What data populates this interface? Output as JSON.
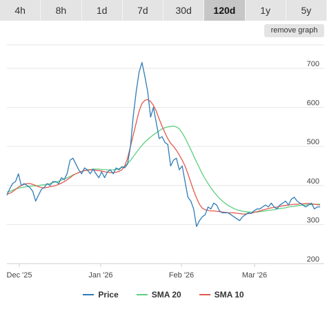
{
  "tabs": [
    {
      "label": "4h",
      "active": false
    },
    {
      "label": "8h",
      "active": false
    },
    {
      "label": "1d",
      "active": false
    },
    {
      "label": "7d",
      "active": false
    },
    {
      "label": "30d",
      "active": false
    },
    {
      "label": "120d",
      "active": true
    },
    {
      "label": "1y",
      "active": false
    },
    {
      "label": "5y",
      "active": false
    }
  ],
  "remove_graph_label": "remove graph",
  "colors": {
    "price": "#2e7bb5",
    "sma20": "#5ccf7f",
    "sma10": "#e2584c",
    "grid": "#e6e6e6",
    "axis_text": "#444444"
  },
  "chart_data": {
    "type": "line",
    "x_tick_labels": [
      "Dec '25",
      "Jan '26",
      "Feb '26",
      "Mar '26"
    ],
    "y_ticks": [
      200,
      300,
      400,
      500,
      600,
      700
    ],
    "ylim": [
      200,
      760
    ],
    "grid": true,
    "legend_position": "bottom",
    "series": [
      {
        "name": "Price",
        "color_key": "price",
        "values": [
          375,
          392,
          405,
          410,
          430,
          400,
          405,
          400,
          395,
          385,
          360,
          375,
          390,
          395,
          405,
          400,
          410,
          410,
          405,
          420,
          415,
          432,
          465,
          470,
          455,
          440,
          430,
          445,
          440,
          430,
          442,
          430,
          420,
          435,
          420,
          435,
          440,
          430,
          445,
          440,
          448,
          445,
          455,
          500,
          580,
          640,
          690,
          715,
          680,
          640,
          575,
          600,
          560,
          520,
          525,
          510,
          505,
          450,
          465,
          470,
          440,
          450,
          410,
          370,
          360,
          340,
          295,
          310,
          320,
          325,
          345,
          340,
          355,
          350,
          335,
          330,
          330,
          330,
          325,
          320,
          315,
          310,
          320,
          325,
          330,
          328,
          335,
          340,
          340,
          345,
          350,
          345,
          355,
          345,
          340,
          350,
          355,
          360,
          350,
          365,
          370,
          360,
          355,
          350,
          345,
          350,
          355,
          340,
          345,
          345
        ]
      },
      {
        "name": "SMA 20",
        "color_key": "sma20",
        "values": [
          383,
          385,
          388,
          391,
          393,
          395,
          396,
          397,
          398,
          399,
          399,
          400,
          401,
          402,
          403,
          405,
          407,
          409,
          411,
          414,
          417,
          420,
          423,
          427,
          430,
          433,
          436,
          438,
          440,
          441,
          442,
          442,
          442,
          441,
          441,
          440,
          440,
          440,
          441,
          443,
          446,
          450,
          456,
          464,
          474,
          484,
          494,
          503,
          511,
          518,
          524,
          530,
          535,
          540,
          545,
          548,
          550,
          551,
          552,
          550,
          545,
          535,
          522,
          507,
          492,
          476,
          460,
          445,
          430,
          417,
          405,
          394,
          384,
          375,
          367,
          360,
          354,
          349,
          345,
          341,
          338,
          336,
          334,
          333,
          332,
          332,
          332,
          332,
          333,
          334,
          335,
          336,
          337,
          338,
          340,
          341,
          342,
          343,
          345,
          346,
          347,
          348,
          349,
          350,
          350,
          351,
          351,
          352,
          352,
          352
        ]
      },
      {
        "name": "SMA 10",
        "color_key": "sma10",
        "values": [
          378,
          380,
          384,
          390,
          396,
          400,
          403,
          405,
          405,
          403,
          400,
          397,
          395,
          394,
          395,
          397,
          398,
          400,
          403,
          406,
          410,
          415,
          420,
          426,
          430,
          433,
          436,
          438,
          439,
          440,
          440,
          439,
          438,
          437,
          435,
          434,
          433,
          433,
          434,
          436,
          440,
          450,
          470,
          500,
          530,
          560,
          590,
          610,
          618,
          620,
          615,
          605,
          590,
          570,
          552,
          535,
          520,
          508,
          500,
          490,
          478,
          465,
          450,
          430,
          408,
          387,
          368,
          352,
          342,
          338,
          336,
          335,
          335,
          334,
          333,
          332,
          331,
          330,
          330,
          330,
          329,
          328,
          327,
          327,
          328,
          329,
          331,
          333,
          335,
          337,
          339,
          341,
          343,
          344,
          345,
          347,
          348,
          349,
          350,
          351,
          352,
          352,
          353,
          353,
          354,
          354,
          353,
          352,
          351,
          350
        ]
      }
    ]
  }
}
